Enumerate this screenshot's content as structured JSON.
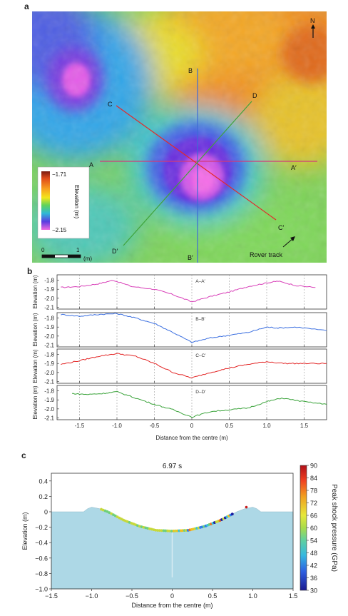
{
  "panels": {
    "a": {
      "letter": "a",
      "north": "N",
      "lines": [
        {
          "start": "A",
          "end": "A′",
          "color": "#d23a7a"
        },
        {
          "start": "B",
          "end": "B′",
          "color": "#3d6bd6"
        },
        {
          "start": "C",
          "end": "C′",
          "color": "#e32a2a"
        },
        {
          "start": "D",
          "end": "D′",
          "color": "#3fa33a"
        }
      ],
      "colorbar": {
        "title": "Elevation (m)",
        "max": "−1.71",
        "min": "−2.15"
      },
      "scalebar": {
        "zero": "0",
        "one": "1",
        "unit": "(m)"
      },
      "rover": "Rover track"
    },
    "b": {
      "letter": "b",
      "ylabel": "Elevation (m)",
      "xlabel": "Distance from the centre (m)",
      "yticks": [
        "-1.8",
        "-1.9",
        "-2.0",
        "-2.1"
      ],
      "xticks": [
        "-1.5",
        "-1.0",
        "-0.5",
        "0",
        "0.5",
        "1.0",
        "1.5"
      ]
    },
    "c": {
      "letter": "c",
      "time": "6.97 s",
      "ylabel": "Elevation (m)",
      "xlabel": "Distance from the centre (m)",
      "yticks": [
        "0.4",
        "0.2",
        "0",
        "−0.2",
        "−0.4",
        "−0.6",
        "−0.8",
        "−1.0"
      ],
      "xticks": [
        "−1.5",
        "−1.0",
        "−0.5",
        "0",
        "0.5",
        "1.0",
        "1.5"
      ],
      "colorbar": {
        "title": "Peak shock pressure (GPa)",
        "ticks": [
          "90",
          "84",
          "78",
          "72",
          "66",
          "60",
          "54",
          "48",
          "42",
          "36",
          "30"
        ]
      }
    }
  },
  "chart_data": [
    {
      "type": "line",
      "series": [
        {
          "name": "A–A′",
          "color": "#d83fb8",
          "x": [
            -1.75,
            -1.5,
            -1.25,
            -1.05,
            -0.8,
            -0.5,
            -0.25,
            0,
            0.25,
            0.5,
            0.75,
            1.0,
            1.15,
            1.4,
            1.65
          ],
          "y": [
            -1.88,
            -1.87,
            -1.84,
            -1.8,
            -1.87,
            -1.9,
            -1.96,
            -2.04,
            -1.98,
            -1.93,
            -1.87,
            -1.83,
            -1.81,
            -1.86,
            -1.88
          ]
        },
        {
          "name": "B–B′",
          "color": "#3b6fe0",
          "x": [
            -1.75,
            -1.5,
            -1.25,
            -1.0,
            -0.75,
            -0.5,
            -0.25,
            0,
            0.25,
            0.5,
            0.75,
            1.0,
            1.15,
            1.4,
            1.8
          ],
          "y": [
            -1.76,
            -1.78,
            -1.76,
            -1.75,
            -1.8,
            -1.86,
            -1.96,
            -2.07,
            -2.02,
            -1.99,
            -1.96,
            -1.9,
            -1.91,
            -1.9,
            -1.94
          ]
        },
        {
          "name": "C–C′",
          "color": "#e32626",
          "x": [
            -1.75,
            -1.5,
            -1.25,
            -1.0,
            -0.75,
            -0.5,
            -0.25,
            0,
            0.25,
            0.5,
            0.75,
            1.0,
            1.25,
            1.5,
            1.8
          ],
          "y": [
            -1.91,
            -1.87,
            -1.82,
            -1.79,
            -1.82,
            -1.9,
            -2.0,
            -2.06,
            -2.0,
            -1.95,
            -1.91,
            -1.88,
            -1.9,
            -1.9,
            -1.9
          ]
        },
        {
          "name": "D–D′",
          "color": "#3aa33a",
          "x": [
            -1.6,
            -1.4,
            -1.2,
            -1.0,
            -0.75,
            -0.5,
            -0.25,
            0,
            0.25,
            0.5,
            0.75,
            1.0,
            1.2,
            1.5,
            1.8
          ],
          "y": [
            -1.83,
            -1.84,
            -1.83,
            -1.81,
            -1.88,
            -1.95,
            -2.01,
            -2.09,
            -2.03,
            -2.01,
            -1.99,
            -1.92,
            -1.88,
            -1.92,
            -1.95
          ]
        }
      ],
      "xlabel": "Distance from the centre (m)",
      "ylabel": "Elevation (m)",
      "xlim": [
        -1.8,
        1.8
      ],
      "ylim": [
        -2.12,
        -1.74
      ]
    },
    {
      "type": "area",
      "title": "6.97 s",
      "xlabel": "Distance from the centre (m)",
      "ylabel": "Elevation (m)",
      "xlim": [
        -1.5,
        1.5
      ],
      "ylim": [
        -1.0,
        0.5
      ],
      "surface": {
        "x": [
          -1.5,
          -1.1,
          -1.05,
          -1.0,
          -0.95,
          -0.9,
          -0.8,
          -0.6,
          -0.4,
          -0.2,
          0,
          0.2,
          0.4,
          0.6,
          0.8,
          0.9,
          0.95,
          1.0,
          1.05,
          1.1,
          1.5
        ],
        "y": [
          0,
          0,
          0.04,
          0.06,
          0.05,
          0.04,
          0.0,
          -0.11,
          -0.19,
          -0.24,
          -0.25,
          -0.24,
          -0.19,
          -0.11,
          0.0,
          0.04,
          0.05,
          0.06,
          0.04,
          0,
          0
        ]
      },
      "pressure_range": [
        30,
        90
      ]
    }
  ]
}
